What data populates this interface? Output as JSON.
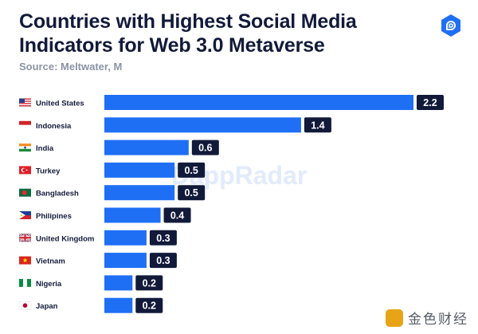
{
  "header": {
    "title": "Countries with Highest Social Media Indicators for Web 3.0 Metaverse",
    "source": "Source: Meltwater, M"
  },
  "brand": {
    "logo_icon": "dappradar-logo-icon",
    "watermark": "DappRadar",
    "corner_watermark": "金色财经",
    "corner_icon": "jinse-logo-icon"
  },
  "colors": {
    "bar": "#1f6ff5",
    "label_bg": "#121a3a",
    "label_text": "#ffffff",
    "title": "#121a3a",
    "source": "#8c93a3",
    "logo": "#1f6ff5"
  },
  "chart_data": {
    "type": "bar",
    "orientation": "horizontal",
    "title": "Countries with Highest Social Media Indicators for Web 3.0 Metaverse",
    "subtitle": "Source: Meltwater, M",
    "xlabel": "",
    "ylabel": "",
    "categories": [
      "United States",
      "Indonesia",
      "India",
      "Turkey",
      "Bangladesh",
      "Philipines",
      "United Kingdom",
      "Vietnam",
      "Nigeria",
      "Japan"
    ],
    "flags": [
      "us-flag-icon",
      "indonesia-flag-icon",
      "india-flag-icon",
      "turkey-flag-icon",
      "bangladesh-flag-icon",
      "philippines-flag-icon",
      "uk-flag-icon",
      "vietnam-flag-icon",
      "nigeria-flag-icon",
      "japan-flag-icon"
    ],
    "values": [
      2.2,
      1.4,
      0.6,
      0.5,
      0.5,
      0.4,
      0.3,
      0.3,
      0.2,
      0.2
    ],
    "data_labels": [
      "2.2",
      "1.4",
      "0.6",
      "0.5",
      "0.5",
      "0.4",
      "0.3",
      "0.3",
      "0.2",
      "0.2"
    ],
    "xlim": [
      0,
      2.2
    ],
    "grid": false,
    "legend": "none"
  }
}
